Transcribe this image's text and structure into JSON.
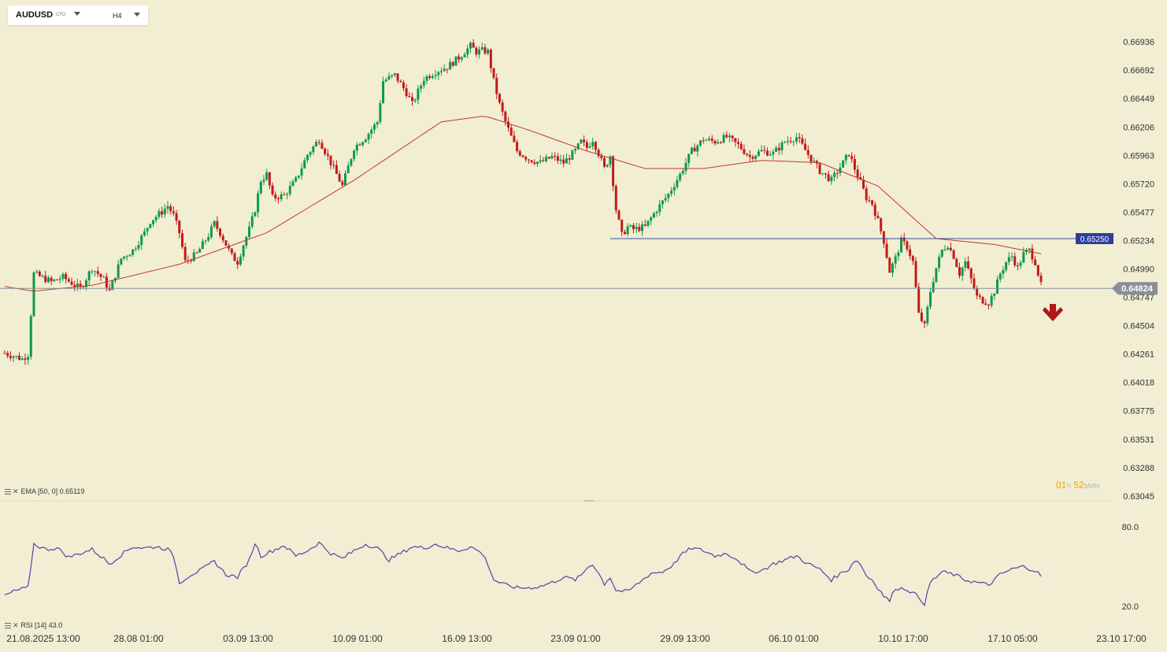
{
  "toolbar": {
    "symbol": "AUDUSD",
    "symbol_type": "CFD",
    "timeframe": "H4"
  },
  "price_axis": {
    "ticks": [
      "0.66936",
      "0.66692",
      "0.66449",
      "0.66206",
      "0.65963",
      "0.65720",
      "0.65477",
      "0.65234",
      "0.64990",
      "0.64747",
      "0.64504",
      "0.64261",
      "0.64018",
      "0.63775",
      "0.63531",
      "0.63288",
      "0.63045"
    ],
    "tick_values": [
      0.66936,
      0.66692,
      0.66449,
      0.66206,
      0.65963,
      0.6572,
      0.65477,
      0.65234,
      0.6499,
      0.64747,
      0.64504,
      0.64261,
      0.64018,
      0.63775,
      0.63531,
      0.63288,
      0.63045
    ]
  },
  "time_axis": {
    "ticks": [
      "21.08.2025  13:00",
      "28.08  01:00",
      "03.09  13:00",
      "10.09  01:00",
      "16.09  13:00",
      "23.09  01:00",
      "29.09  13:00",
      "06.10  01:00",
      "10.10  17:00",
      "17.10  05:00",
      "23.10  17:00"
    ]
  },
  "indicators": {
    "ema_label": "EMA  [50, 0]  0.65119",
    "rsi_label": "RSI  [14]  43.0",
    "rsi_ticks": [
      "80.0",
      "20.0"
    ],
    "rsi_tick_values": [
      80,
      20
    ]
  },
  "timer": {
    "hours": "01",
    "hours_unit": "ч",
    "minutes": "52",
    "minutes_unit": "мин"
  },
  "colors": {
    "background": "#f2eed3",
    "bull_candle": "#0e9a4b",
    "bear_candle": "#c21a1a",
    "ema": "#c0392b",
    "rsi": "#5b3fa8",
    "level_line": "#3b4aa0",
    "current_price": "#8a8f97",
    "sell_arrow": "#b01818"
  },
  "chart_data": {
    "type": "candlestick",
    "symbol": "AUDUSD",
    "timeframe": "H4",
    "current_price": 0.64824,
    "current_price_label": "0.64824",
    "horizontal_level": 0.6525,
    "horizontal_level_label": "0.65250",
    "signal": "sell",
    "ylim": [
      0.63045,
      0.67036
    ],
    "rsi_ylim": [
      10,
      90
    ],
    "price_path": [
      [
        0,
        0.6427
      ],
      [
        6,
        0.6422
      ],
      [
        8,
        0.6426
      ],
      [
        10,
        0.6495
      ],
      [
        16,
        0.6488
      ],
      [
        20,
        0.6492
      ],
      [
        26,
        0.6482
      ],
      [
        30,
        0.65
      ],
      [
        34,
        0.649
      ],
      [
        36,
        0.648
      ],
      [
        40,
        0.6508
      ],
      [
        44,
        0.6515
      ],
      [
        48,
        0.653
      ],
      [
        50,
        0.654
      ],
      [
        54,
        0.6548
      ],
      [
        56,
        0.6553
      ],
      [
        58,
        0.6545
      ],
      [
        60,
        0.653
      ],
      [
        62,
        0.6505
      ],
      [
        66,
        0.6512
      ],
      [
        70,
        0.6528
      ],
      [
        72,
        0.6538
      ],
      [
        74,
        0.653
      ],
      [
        78,
        0.651
      ],
      [
        80,
        0.6505
      ],
      [
        82,
        0.652
      ],
      [
        84,
        0.6533
      ],
      [
        86,
        0.655
      ],
      [
        88,
        0.6575
      ],
      [
        90,
        0.658
      ],
      [
        92,
        0.656
      ],
      [
        96,
        0.6562
      ],
      [
        100,
        0.6575
      ],
      [
        104,
        0.6597
      ],
      [
        108,
        0.661
      ],
      [
        112,
        0.659
      ],
      [
        116,
        0.657
      ],
      [
        120,
        0.6603
      ],
      [
        124,
        0.6612
      ],
      [
        128,
        0.6625
      ],
      [
        130,
        0.666
      ],
      [
        134,
        0.6665
      ],
      [
        138,
        0.665
      ],
      [
        140,
        0.664
      ],
      [
        144,
        0.6662
      ],
      [
        148,
        0.6668
      ],
      [
        152,
        0.6672
      ],
      [
        156,
        0.668
      ],
      [
        160,
        0.669
      ],
      [
        162,
        0.6685
      ],
      [
        164,
        0.6686
      ],
      [
        166,
        0.6685
      ],
      [
        168,
        0.666
      ],
      [
        170,
        0.664
      ],
      [
        172,
        0.6625
      ],
      [
        174,
        0.6612
      ],
      [
        176,
        0.66
      ],
      [
        180,
        0.6593
      ],
      [
        184,
        0.659
      ],
      [
        188,
        0.6595
      ],
      [
        192,
        0.659
      ],
      [
        196,
        0.66
      ],
      [
        198,
        0.6608
      ],
      [
        200,
        0.6603
      ],
      [
        202,
        0.661
      ],
      [
        204,
        0.6598
      ],
      [
        206,
        0.6585
      ],
      [
        208,
        0.6596
      ],
      [
        210,
        0.655
      ],
      [
        212,
        0.6528
      ],
      [
        214,
        0.6535
      ],
      [
        216,
        0.6533
      ],
      [
        220,
        0.6535
      ],
      [
        224,
        0.655
      ],
      [
        228,
        0.6563
      ],
      [
        232,
        0.658
      ],
      [
        236,
        0.66
      ],
      [
        240,
        0.661
      ],
      [
        244,
        0.6608
      ],
      [
        248,
        0.6612
      ],
      [
        252,
        0.6605
      ],
      [
        256,
        0.6595
      ],
      [
        260,
        0.66
      ],
      [
        264,
        0.6598
      ],
      [
        268,
        0.6608
      ],
      [
        272,
        0.6612
      ],
      [
        276,
        0.6597
      ],
      [
        280,
        0.6583
      ],
      [
        284,
        0.6575
      ],
      [
        288,
        0.659
      ],
      [
        290,
        0.6598
      ],
      [
        292,
        0.6585
      ],
      [
        294,
        0.6573
      ],
      [
        296,
        0.656
      ],
      [
        298,
        0.6555
      ],
      [
        300,
        0.654
      ],
      [
        302,
        0.6523
      ],
      [
        304,
        0.6497
      ],
      [
        306,
        0.6508
      ],
      [
        308,
        0.6523
      ],
      [
        310,
        0.6518
      ],
      [
        312,
        0.6505
      ],
      [
        314,
        0.646
      ],
      [
        316,
        0.645
      ],
      [
        318,
        0.648
      ],
      [
        320,
        0.65
      ],
      [
        322,
        0.6515
      ],
      [
        324,
        0.652
      ],
      [
        326,
        0.651
      ],
      [
        328,
        0.6495
      ],
      [
        330,
        0.6505
      ],
      [
        332,
        0.649
      ],
      [
        334,
        0.6475
      ],
      [
        336,
        0.6472
      ],
      [
        338,
        0.647
      ],
      [
        340,
        0.648
      ],
      [
        342,
        0.6495
      ],
      [
        344,
        0.6505
      ],
      [
        346,
        0.651
      ],
      [
        348,
        0.65
      ],
      [
        350,
        0.6512
      ],
      [
        352,
        0.6515
      ],
      [
        354,
        0.6505
      ],
      [
        356,
        0.6485
      ]
    ],
    "rsi_path": [
      [
        0,
        28
      ],
      [
        4,
        32
      ],
      [
        8,
        34
      ],
      [
        10,
        67
      ],
      [
        14,
        63
      ],
      [
        18,
        64
      ],
      [
        22,
        57
      ],
      [
        26,
        60
      ],
      [
        30,
        63
      ],
      [
        34,
        56
      ],
      [
        36,
        52
      ],
      [
        40,
        59
      ],
      [
        44,
        65
      ],
      [
        48,
        64
      ],
      [
        52,
        65
      ],
      [
        56,
        63
      ],
      [
        58,
        58
      ],
      [
        60,
        38
      ],
      [
        64,
        44
      ],
      [
        68,
        48
      ],
      [
        72,
        54
      ],
      [
        76,
        44
      ],
      [
        80,
        42
      ],
      [
        84,
        55
      ],
      [
        86,
        68
      ],
      [
        88,
        58
      ],
      [
        92,
        62
      ],
      [
        96,
        66
      ],
      [
        100,
        58
      ],
      [
        104,
        62
      ],
      [
        108,
        68
      ],
      [
        112,
        60
      ],
      [
        116,
        56
      ],
      [
        120,
        62
      ],
      [
        124,
        67
      ],
      [
        128,
        64
      ],
      [
        132,
        55
      ],
      [
        136,
        60
      ],
      [
        140,
        65
      ],
      [
        144,
        64
      ],
      [
        148,
        67
      ],
      [
        152,
        64
      ],
      [
        156,
        62
      ],
      [
        160,
        65
      ],
      [
        164,
        60
      ],
      [
        166,
        52
      ],
      [
        168,
        40
      ],
      [
        172,
        36
      ],
      [
        176,
        34
      ],
      [
        180,
        34
      ],
      [
        184,
        35
      ],
      [
        188,
        38
      ],
      [
        192,
        42
      ],
      [
        196,
        40
      ],
      [
        198,
        43
      ],
      [
        200,
        49
      ],
      [
        202,
        52
      ],
      [
        204,
        45
      ],
      [
        206,
        37
      ],
      [
        208,
        42
      ],
      [
        210,
        32
      ],
      [
        214,
        31
      ],
      [
        218,
        38
      ],
      [
        222,
        45
      ],
      [
        226,
        46
      ],
      [
        230,
        52
      ],
      [
        232,
        58
      ],
      [
        236,
        64
      ],
      [
        240,
        62
      ],
      [
        244,
        58
      ],
      [
        248,
        60
      ],
      [
        252,
        55
      ],
      [
        256,
        46
      ],
      [
        260,
        47
      ],
      [
        264,
        52
      ],
      [
        268,
        55
      ],
      [
        272,
        58
      ],
      [
        276,
        52
      ],
      [
        280,
        48
      ],
      [
        284,
        40
      ],
      [
        288,
        46
      ],
      [
        290,
        48
      ],
      [
        292,
        55
      ],
      [
        294,
        52
      ],
      [
        296,
        43
      ],
      [
        298,
        40
      ],
      [
        300,
        34
      ],
      [
        302,
        28
      ],
      [
        304,
        24
      ],
      [
        306,
        34
      ],
      [
        310,
        33
      ],
      [
        314,
        27
      ],
      [
        316,
        22
      ],
      [
        318,
        38
      ],
      [
        322,
        46
      ],
      [
        326,
        44
      ],
      [
        330,
        40
      ],
      [
        334,
        38
      ],
      [
        338,
        36
      ],
      [
        342,
        44
      ],
      [
        346,
        48
      ],
      [
        350,
        50
      ],
      [
        354,
        47
      ],
      [
        356,
        43
      ]
    ],
    "ema_path": [
      [
        0,
        0.6484
      ],
      [
        10,
        0.648
      ],
      [
        30,
        0.6485
      ],
      [
        60,
        0.6503
      ],
      [
        90,
        0.653
      ],
      [
        120,
        0.6575
      ],
      [
        150,
        0.6625
      ],
      [
        165,
        0.663
      ],
      [
        180,
        0.6618
      ],
      [
        200,
        0.66
      ],
      [
        220,
        0.6585
      ],
      [
        240,
        0.6585
      ],
      [
        260,
        0.6592
      ],
      [
        280,
        0.659
      ],
      [
        300,
        0.657
      ],
      [
        320,
        0.6525
      ],
      [
        340,
        0.652
      ],
      [
        356,
        0.6512
      ]
    ]
  }
}
